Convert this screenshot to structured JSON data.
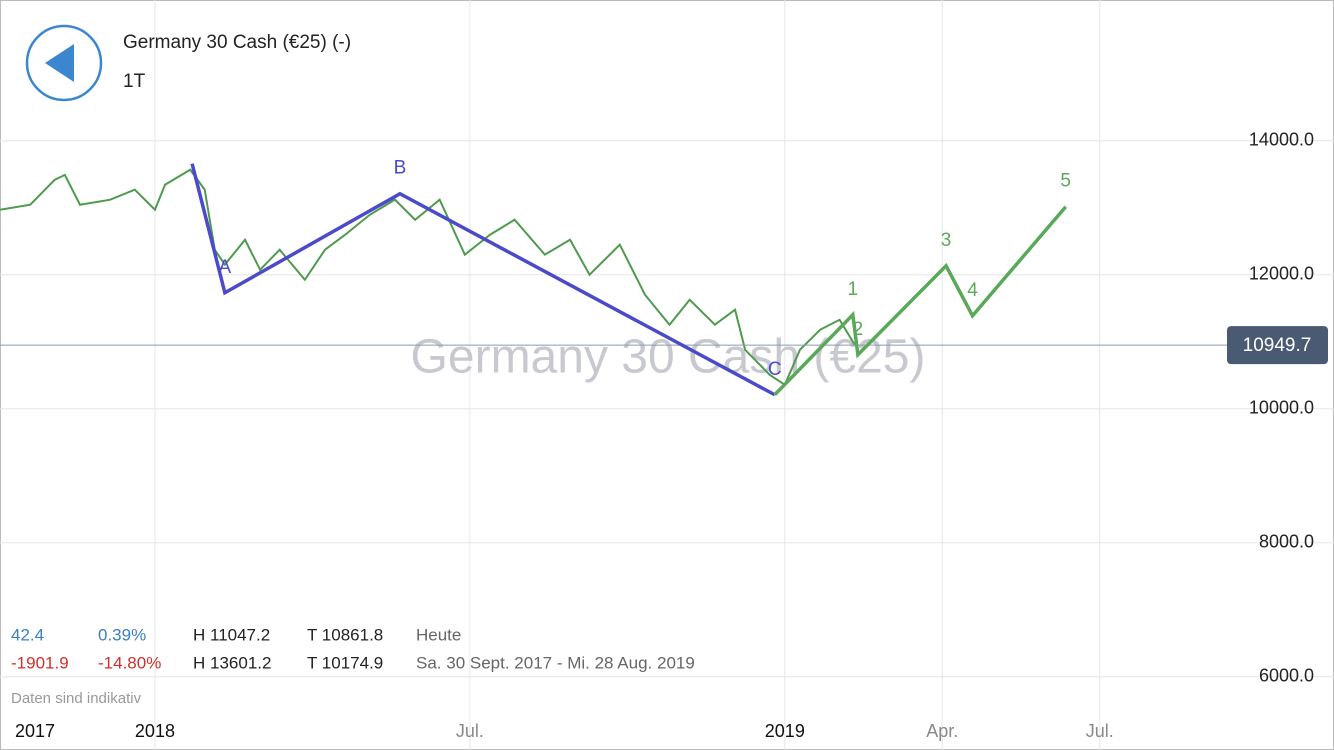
{
  "header": {
    "title": "Germany 30 Cash (€25) (-)",
    "period": "1T"
  },
  "chart_data": {
    "type": "line",
    "watermark": "Germany 30 Cash (€25)",
    "x": [
      2017.754,
      2017.802,
      2017.841,
      2017.857,
      2017.881,
      2017.929,
      2017.968,
      2018.0,
      2018.016,
      2018.056,
      2018.079,
      2018.095,
      2018.111,
      2018.143,
      2018.167,
      2018.198,
      2018.238,
      2018.27,
      2018.302,
      2018.341,
      2018.381,
      2018.413,
      2018.452,
      2018.492,
      2018.532,
      2018.571,
      2018.619,
      2018.659,
      2018.69,
      2018.738,
      2018.778,
      2018.817,
      2018.849,
      2018.889,
      2018.921,
      2018.937,
      2018.976,
      2019.0,
      2019.024,
      2019.056,
      2019.087,
      2019.111
    ],
    "series": [
      {
        "color": "#4f9a4f",
        "values": [
          12970,
          13045,
          13418,
          13490,
          13045,
          13120,
          13270,
          12970,
          13343,
          13567,
          13270,
          12373,
          12150,
          12522,
          12075,
          12373,
          11925,
          12373,
          12597,
          12895,
          13120,
          12821,
          13120,
          12300,
          12597,
          12821,
          12300,
          12522,
          12000,
          12448,
          11702,
          11254,
          11627,
          11254,
          11478,
          10880,
          10507,
          10358,
          10880,
          11179,
          11328,
          10955
        ]
      }
    ],
    "waves": [
      {
        "color": "#4a4acb",
        "x": [
          2018.059,
          2018.111,
          2018.389,
          2018.984
        ],
        "values": [
          13657,
          11731,
          13209,
          10209
        ],
        "labels": [
          null,
          "A",
          "B",
          "C"
        ]
      },
      {
        "color": "#5aa95a",
        "x": [
          2018.984,
          2019.108,
          2019.116,
          2019.256,
          2019.298,
          2019.446
        ],
        "values": [
          10209,
          11403,
          10806,
          12134,
          11388,
          13015
        ],
        "labels": [
          null,
          "1",
          "2",
          "3",
          "4",
          "5"
        ]
      }
    ],
    "current": 10949.7,
    "xlim": [
      2017.754,
      2019.683
    ],
    "xticks": [
      {
        "value": 2017.754,
        "label": "2017"
      },
      2018,
      {
        "value": 2018.5,
        "label": "Jul."
      },
      2019,
      {
        "value": 2019.25,
        "label": "Apr."
      },
      {
        "value": 2019.5,
        "label": "Jul."
      }
    ],
    "ylim": [
      5430,
      16100
    ],
    "yticks": [
      {
        "value": 6000,
        "label": "6000.0"
      },
      {
        "value": 8000,
        "label": "8000.0"
      },
      {
        "value": 10000,
        "label": "10000.0"
      },
      {
        "value": 12000,
        "label": "12000.0"
      },
      {
        "value": 14000,
        "label": "14000.0"
      }
    ],
    "grid": true
  },
  "stats": {
    "rows": [
      [
        "42.4",
        "0.39%",
        "H 11047.2",
        "T 10861.8",
        "Heute"
      ],
      [
        "-1901.9",
        "-14.80%",
        "H 13601.2",
        "T 10174.9",
        "Sa. 30 Sept. 2017 - Mi. 28 Aug. 2019"
      ]
    ],
    "note": "Daten sind indikativ"
  }
}
